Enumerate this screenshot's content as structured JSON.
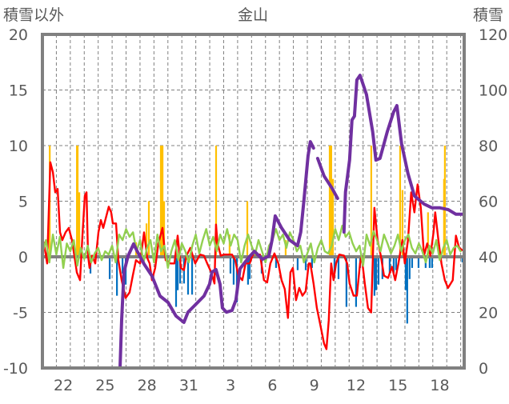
{
  "chart_data": {
    "type": "line",
    "title": "金山",
    "ylabel": "積雪以外",
    "y2label": "積雪",
    "ylim": [
      -10,
      20
    ],
    "y2lim": [
      0,
      120
    ],
    "xlim": [
      0,
      30.25
    ],
    "yticks": [
      "20",
      "15",
      "10",
      "5",
      "0",
      "-5",
      "-10"
    ],
    "yticks_values": [
      20,
      15,
      10,
      5,
      0,
      -5,
      -10
    ],
    "y2ticks": [
      "120",
      "100",
      "80",
      "60",
      "40",
      "20",
      "0"
    ],
    "y2ticks_values": [
      120,
      100,
      80,
      60,
      40,
      20,
      0
    ],
    "xticks": [
      "22",
      "25",
      "28",
      "31",
      "3",
      "6",
      "9",
      "12",
      "15",
      "18"
    ],
    "xticks_positions": [
      1.5,
      4.5,
      7.5,
      10.5,
      13.5,
      16.5,
      19.5,
      22.5,
      25.5,
      28.5
    ],
    "grid": true,
    "colors": {
      "red": "#FF0000",
      "green": "#92D050",
      "blue": "#0070C0",
      "yellow": "#FFC000",
      "purple": "#7030A0",
      "frame": "#808080"
    },
    "series": [
      {
        "name": "red-series",
        "axis": "left",
        "color": "#FF0000",
        "x": [
          0,
          0.11,
          0.34,
          0.57,
          0.75,
          0.92,
          1.09,
          1.26,
          1.43,
          1.66,
          1.89,
          2.12,
          2.29,
          2.47,
          2.7,
          2.87,
          3.04,
          3.16,
          3.27,
          3.38,
          3.56,
          3.79,
          4.02,
          4.19,
          4.36,
          4.59,
          4.76,
          4.93,
          5.05,
          5.28,
          5.45,
          5.68,
          5.97,
          6.25,
          6.48,
          6.71,
          7.0,
          7.29,
          7.52,
          7.69,
          7.86,
          8.09,
          8.32,
          8.61,
          8.84,
          9.18,
          9.47,
          9.7,
          9.93,
          10.15,
          10.33,
          10.61,
          10.96,
          11.3,
          11.59,
          11.82,
          12.11,
          12.34,
          12.45,
          12.56,
          12.79,
          13.02,
          13.25,
          13.6,
          13.83,
          14.06,
          14.34,
          14.57,
          14.86,
          15.09,
          15.32,
          15.61,
          15.89,
          16.12,
          16.35,
          16.64,
          16.92,
          17.15,
          17.38,
          17.61,
          17.79,
          17.96,
          18.19,
          18.42,
          18.65,
          18.88,
          19.1,
          19.22,
          19.45,
          19.68,
          19.91,
          20.2,
          20.37,
          20.54,
          20.71,
          20.88,
          21.06,
          21.29,
          21.63,
          21.86,
          22.03,
          22.32,
          22.55,
          22.78,
          22.89,
          23.12,
          23.35,
          23.58,
          23.81,
          24.04,
          24.27,
          24.5,
          24.79,
          25.07,
          25.3,
          25.53,
          25.82,
          25.99,
          26.22,
          26.45,
          26.68,
          26.91,
          27.14,
          27.37,
          27.6,
          27.83,
          28.05,
          28.17,
          28.4,
          28.62,
          28.86,
          29.09,
          29.43,
          29.66,
          29.89,
          30.12
        ],
        "values": [
          1.5,
          1.2,
          -0.6,
          8.5,
          7.6,
          5.8,
          6.1,
          2.2,
          1.5,
          2.2,
          2.6,
          1.5,
          0.1,
          -1.4,
          -2.1,
          1.9,
          5.5,
          5.8,
          0.1,
          -1.0,
          0.1,
          -0.6,
          2.2,
          3.3,
          2.6,
          3.7,
          4.5,
          4.0,
          3.0,
          3.0,
          -0.3,
          -2.1,
          -3.7,
          -3.2,
          -1.7,
          -0.3,
          -0.6,
          2.2,
          -0.1,
          -0.6,
          -2.1,
          -1.0,
          1.2,
          2.6,
          -0.3,
          -0.6,
          -0.6,
          1.9,
          -1.0,
          -1.2,
          0.1,
          0.8,
          -0.6,
          0.2,
          0.1,
          -0.6,
          -1.4,
          -2.4,
          2.9,
          1.2,
          0.1,
          0.2,
          0.2,
          0.2,
          -0.3,
          -1.7,
          -2.1,
          -0.6,
          -0.6,
          0.2,
          0.2,
          0.2,
          -2.1,
          -2.3,
          -0.6,
          0.3,
          -0.6,
          -2.1,
          -2.9,
          -5.5,
          -1.4,
          -1.0,
          -3.9,
          -2.8,
          -3.5,
          -3.1,
          -0.6,
          -0.6,
          -2.4,
          -4.6,
          -6.0,
          -7.8,
          -8.3,
          -5.7,
          -0.6,
          -2.1,
          -0.6,
          0.2,
          0.1,
          -0.6,
          -2.4,
          -3.5,
          -3.5,
          -0.6,
          0.1,
          -2.4,
          -4.6,
          -5.0,
          4.4,
          1.5,
          0.1,
          -1.7,
          -1.9,
          -0.9,
          -2.1,
          -0.6,
          1.5,
          -0.6,
          1.5,
          5.8,
          4.0,
          6.5,
          4.4,
          0.1,
          1.2,
          0.1,
          2.2,
          4.0,
          1.5,
          -0.6,
          -2.1,
          -2.8,
          -2.1,
          1.9,
          0.8,
          0.6
        ]
      },
      {
        "name": "green-series",
        "axis": "left",
        "color": "#92D050",
        "x_start": 0,
        "x_step": 0.25,
        "values": [
          0.3,
          1.5,
          -0.5,
          2.0,
          0.2,
          1.8,
          -1.0,
          1.2,
          0.5,
          1.5,
          -0.8,
          0.8,
          -0.2,
          1.0,
          -0.5,
          0.3,
          0.8,
          -0.3,
          0.5,
          0.2,
          1.0,
          -0.5,
          2.0,
          1.5,
          2.5,
          1.8,
          2.2,
          0.5,
          1.5,
          -0.5,
          0.8,
          1.5,
          -0.5,
          2.0,
          0.5,
          1.0,
          -1.0,
          0.5,
          1.5,
          -0.3,
          1.2,
          0.5,
          -0.5,
          1.0,
          2.0,
          0.3,
          1.5,
          2.5,
          1.0,
          1.8,
          0.5,
          2.0,
          1.2,
          2.5,
          1.0,
          2.0,
          1.5,
          -0.5,
          1.0,
          2.0,
          1.0,
          0.2,
          1.5,
          0.5,
          -0.5,
          1.0,
          1.5,
          2.5,
          1.5,
          2.0,
          0.8,
          2.2,
          1.5,
          0.5,
          1.0,
          -0.5,
          0.3,
          1.2,
          -0.5,
          0.8,
          1.5,
          0.5,
          0.3,
          1.0,
          2.5,
          1.5,
          2.8,
          1.8,
          2.2,
          1.2,
          0.5,
          1.0,
          -0.8,
          2.0,
          1.0,
          2.3,
          1.5,
          0.5,
          2.0,
          1.2,
          0.3,
          1.0,
          2.0,
          0.5,
          1.5,
          2.0,
          0.8,
          0.3,
          1.2,
          0.5,
          -0.5,
          1.0,
          0.3,
          1.5,
          -0.3,
          0.8,
          1.5,
          0.2,
          0.8,
          1.0,
          0.5
        ]
      },
      {
        "name": "snow-depth-series",
        "axis": "right",
        "color": "#7030A0",
        "x": [
          0,
          5.57,
          5.68,
          5.85,
          6.14,
          6.54,
          6.83,
          7.29,
          7.86,
          8.43,
          9.01,
          9.58,
          10.15,
          10.44,
          11.02,
          11.59,
          11.99,
          12.16,
          12.45,
          12.74,
          12.91,
          13.2,
          13.6,
          13.88,
          14.17,
          14.74,
          15.2,
          15.78,
          16.24,
          16.47,
          16.7,
          17.15,
          17.73,
          18.3,
          18.53,
          18.76,
          19.05,
          19.22,
          19.45,
          19.6,
          19.74,
          20.2,
          20.77,
          21.17,
          21.4,
          21.63,
          21.74,
          22.03,
          22.2,
          22.38,
          22.55,
          22.78,
          23.24,
          23.69,
          23.92,
          24.21,
          24.73,
          25.19,
          25.42,
          25.76,
          26.22,
          26.68,
          27.37,
          27.94,
          28.51,
          29.09,
          29.66,
          30.12
        ],
        "values": [
          0,
          0,
          17.3,
          34.5,
          40.3,
          44.6,
          41.7,
          37.4,
          33.1,
          25.9,
          23.6,
          18.7,
          16.4,
          20.1,
          23.0,
          25.9,
          30.2,
          34.5,
          35.4,
          30.2,
          21.6,
          20.1,
          20.7,
          24.5,
          35.7,
          39.4,
          42.0,
          39.1,
          40.3,
          46.0,
          54.7,
          50.4,
          46.0,
          44.0,
          48.9,
          60.4,
          76.3,
          81.4,
          79.1,
          null,
          75.4,
          69.1,
          64.7,
          61.0,
          null,
          48.9,
          63.3,
          74.8,
          89.2,
          90.6,
          103.6,
          105.3,
          98.4,
          84.9,
          74.8,
          75.4,
          84.9,
          92.1,
          94.4,
          80.6,
          69.9,
          61.9,
          59.0,
          57.6,
          57.6,
          57.0,
          55.3,
          55.3
        ]
      },
      {
        "name": "yellow-bars",
        "axis": "left",
        "type": "bar",
        "color": "#FFC000",
        "x": [
          0.52,
          2.47,
          2.52,
          2.64,
          6.71,
          7.46,
          7.63,
          8.49,
          8.61,
          8.72,
          12.45,
          13.42,
          14.69,
          17.44,
          20.6,
          20.71,
          20.83,
          23.58,
          25.65,
          25.82,
          27.65,
          28.8,
          28.86
        ],
        "values": [
          10,
          10,
          10,
          5.8,
          1.3,
          3,
          5,
          10,
          10,
          5,
          10,
          2,
          5,
          1.5,
          10,
          10,
          7,
          10,
          10,
          6,
          4,
          7,
          10
        ]
      },
      {
        "name": "blue-bars",
        "axis": "left",
        "type": "bar",
        "color": "#0070C0",
        "x": [
          3.44,
          4.82,
          5.34,
          5.74,
          5.97,
          9.58,
          9.7,
          9.87,
          10.15,
          10.44,
          10.73,
          13.48,
          13.71,
          13.94,
          14.74,
          14.86,
          15.72,
          16.75,
          18.3,
          18.88,
          19.33,
          20.94,
          21.23,
          21.8,
          22.49,
          22.78,
          23.81,
          23.93,
          24.1,
          24.38,
          24.9,
          25.19,
          25.36,
          26.05,
          26.16,
          26.33,
          26.51,
          26.97,
          27.48,
          27.77,
          27.94,
          30.12
        ],
        "values": [
          -1.5,
          -2.0,
          -3.5,
          -1.5,
          -2.5,
          -4.5,
          -3.0,
          -2.4,
          -2.4,
          -3.4,
          -3.4,
          -1.5,
          -2.5,
          -4.1,
          -2.5,
          -2.0,
          -1.5,
          -1.0,
          -1.2,
          -1.2,
          -1.0,
          -1.5,
          -2.0,
          -4.5,
          -4.5,
          -1.0,
          -3.5,
          -3.0,
          -2.5,
          -2.0,
          -1.5,
          -1.5,
          -1.2,
          -3.0,
          -6.0,
          -2.0,
          -1.0,
          -1.0,
          -1.0,
          -1.0,
          -1.0,
          -0.5
        ]
      }
    ]
  }
}
